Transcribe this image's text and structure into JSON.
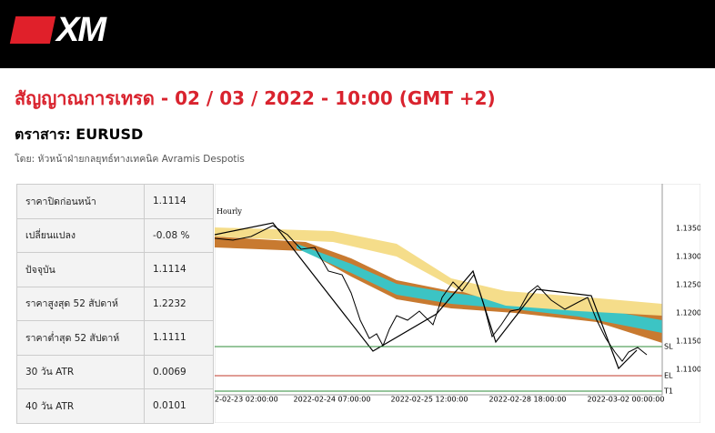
{
  "header": {
    "logo": "XM"
  },
  "title": "สัญญาณการเทรด - 02 / 03 / 2022 - 10:00 (GMT +2)",
  "instrument": "ตราสาร: EURUSD",
  "author": "โดย: หัวหน้าฝ่ายกลยุทธ์ทางเทคนิค Avramis Despotis",
  "table": {
    "rows": [
      [
        "ราคาปิดก่อนหน้า",
        "1.1114"
      ],
      [
        "เปลี่ยนแปลง",
        "-0.08 %"
      ],
      [
        "ปัจจุบัน",
        "1.1114"
      ],
      [
        "ราคาสูงสุด 52 สัปดาห์",
        "1.2232"
      ],
      [
        "ราคาต่ำสุด 52 สัปดาห์",
        "1.1111"
      ],
      [
        "30 วัน ATR",
        "0.0069"
      ],
      [
        "40 วัน ATR",
        "0.0101"
      ]
    ]
  },
  "chart_image": {
    "timeframe": "Hourly",
    "y_labels": [
      "1.1350",
      "1.1300",
      "1.1250",
      "1.1200",
      "1.1150",
      "1.1100"
    ],
    "x_labels": [
      "2-02-23 02:00:00",
      "2022-02-24 07:00:00",
      "2022-02-25 12:00:00",
      "2022-02-28 18:00:00",
      "2022-03-02 00:00:00"
    ],
    "level_labels": [
      "SL",
      "EL",
      "T1"
    ]
  }
}
